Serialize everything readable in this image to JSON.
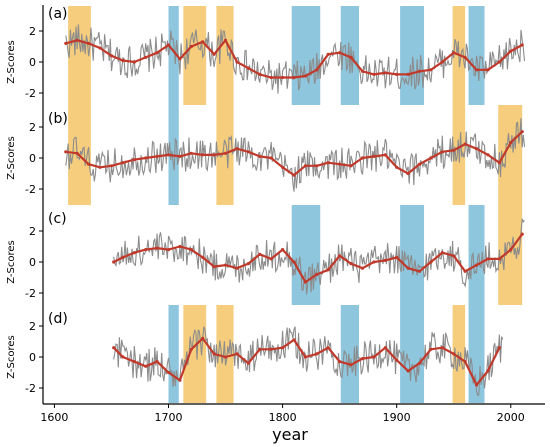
{
  "chart_data": {
    "type": "line",
    "title": "",
    "xlabel": "year",
    "ylabel": "Z-Scores",
    "xlim": [
      1590,
      2030
    ],
    "x_ticks": [
      1600,
      1700,
      1800,
      1900,
      2000
    ],
    "y_ticks": [
      -2,
      0,
      2
    ],
    "colors": {
      "raw": "#8c8c8c",
      "smoothed": "#c0392b",
      "blue_band": "#8ec6de",
      "orange_band": "#f5cd7d"
    },
    "bands": [
      {
        "color": "orange",
        "start": 1612,
        "end": 1632
      },
      {
        "color": "blue",
        "start": 1700,
        "end": 1709
      },
      {
        "color": "orange",
        "start": 1713,
        "end": 1733
      },
      {
        "color": "orange",
        "start": 1742,
        "end": 1757
      },
      {
        "color": "blue",
        "start": 1808,
        "end": 1833
      },
      {
        "color": "blue",
        "start": 1851,
        "end": 1867
      },
      {
        "color": "blue",
        "start": 1903,
        "end": 1924
      },
      {
        "color": "orange",
        "start": 1949,
        "end": 1960
      },
      {
        "color": "blue",
        "start": 1963,
        "end": 1977
      },
      {
        "color": "orange",
        "start": 1989,
        "end": 2010
      }
    ],
    "panels": [
      {
        "label": "(a)",
        "start": 1610,
        "end": 2012,
        "ylim": [
          -2.8,
          2.8
        ],
        "bands_visible": [
          1,
          1,
          1,
          1,
          1,
          1,
          1,
          1,
          1,
          0
        ],
        "smooth_x": [
          1610,
          1620,
          1630,
          1640,
          1650,
          1660,
          1670,
          1680,
          1690,
          1700,
          1710,
          1720,
          1730,
          1740,
          1750,
          1760,
          1770,
          1780,
          1790,
          1800,
          1810,
          1820,
          1830,
          1840,
          1850,
          1860,
          1870,
          1880,
          1890,
          1900,
          1910,
          1920,
          1930,
          1940,
          1950,
          1960,
          1970,
          1980,
          1990,
          2000,
          2010
        ],
        "smooth_y": [
          1.2,
          1.4,
          1.2,
          0.9,
          0.4,
          0.1,
          0.0,
          0.3,
          0.6,
          1.1,
          0.2,
          1.0,
          1.3,
          0.5,
          1.4,
          0.0,
          -0.4,
          -0.8,
          -1.0,
          -1.0,
          -1.0,
          -0.9,
          -0.5,
          0.5,
          0.6,
          0.3,
          -0.6,
          -0.8,
          -0.7,
          -0.8,
          -0.8,
          -0.6,
          -0.5,
          0.0,
          0.6,
          0.3,
          -0.5,
          -0.5,
          0.0,
          0.7,
          1.1
        ]
      },
      {
        "label": "(b)",
        "start": 1610,
        "end": 2012,
        "ylim": [
          -2.8,
          2.8
        ],
        "bands_visible": [
          1,
          1,
          0,
          1,
          0,
          0,
          0,
          1,
          0,
          1
        ],
        "smooth_x": [
          1610,
          1620,
          1630,
          1640,
          1650,
          1660,
          1670,
          1680,
          1690,
          1700,
          1710,
          1720,
          1730,
          1740,
          1750,
          1760,
          1770,
          1780,
          1790,
          1800,
          1810,
          1820,
          1830,
          1840,
          1850,
          1860,
          1870,
          1880,
          1890,
          1900,
          1910,
          1920,
          1930,
          1940,
          1950,
          1960,
          1970,
          1980,
          1990,
          2000,
          2010
        ],
        "smooth_y": [
          0.4,
          0.3,
          -0.4,
          -0.6,
          -0.5,
          -0.3,
          -0.1,
          0.0,
          0.1,
          0.2,
          0.1,
          0.3,
          0.2,
          0.2,
          0.3,
          0.6,
          0.4,
          0.1,
          0.0,
          -0.6,
          -1.1,
          -0.5,
          -0.5,
          -0.3,
          -0.4,
          -0.5,
          0.0,
          0.1,
          0.2,
          -0.6,
          -1.0,
          -0.4,
          0.0,
          0.4,
          0.5,
          0.9,
          0.6,
          0.2,
          -0.3,
          1.0,
          1.7
        ]
      },
      {
        "label": "(c)",
        "start": 1652,
        "end": 2012,
        "ylim": [
          -2.8,
          2.8
        ],
        "bands_visible": [
          0,
          0,
          0,
          0,
          1,
          0,
          1,
          0,
          1,
          1
        ],
        "smooth_x": [
          1652,
          1660,
          1670,
          1680,
          1690,
          1700,
          1710,
          1720,
          1730,
          1740,
          1750,
          1760,
          1770,
          1780,
          1790,
          1800,
          1810,
          1820,
          1830,
          1840,
          1850,
          1860,
          1870,
          1880,
          1890,
          1900,
          1910,
          1920,
          1930,
          1940,
          1950,
          1960,
          1970,
          1980,
          1990,
          2000,
          2010
        ],
        "smooth_y": [
          0.0,
          0.3,
          0.6,
          0.8,
          0.9,
          0.8,
          1.0,
          0.8,
          0.3,
          -0.3,
          -0.2,
          -0.4,
          -0.1,
          0.5,
          0.2,
          0.8,
          0.0,
          -1.3,
          -0.8,
          -0.5,
          0.4,
          -0.1,
          -0.4,
          0.0,
          0.1,
          0.3,
          -0.4,
          -0.6,
          0.0,
          0.6,
          0.4,
          -0.6,
          -0.2,
          0.2,
          0.2,
          0.8,
          1.8
        ]
      },
      {
        "label": "(d)",
        "start": 1652,
        "end": 1993,
        "ylim": [
          -2.8,
          2.8
        ],
        "bands_visible": [
          0,
          1,
          1,
          1,
          0,
          1,
          1,
          1,
          1,
          0
        ],
        "smooth_x": [
          1652,
          1660,
          1670,
          1680,
          1690,
          1700,
          1710,
          1720,
          1730,
          1740,
          1750,
          1760,
          1770,
          1780,
          1790,
          1800,
          1810,
          1820,
          1830,
          1840,
          1850,
          1860,
          1870,
          1880,
          1890,
          1900,
          1910,
          1920,
          1930,
          1940,
          1950,
          1960,
          1970,
          1980,
          1990
        ],
        "smooth_y": [
          0.6,
          0.0,
          -0.3,
          -0.6,
          -0.3,
          -1.0,
          -1.5,
          0.5,
          1.2,
          0.2,
          0.0,
          0.2,
          -0.4,
          0.5,
          0.5,
          0.6,
          1.1,
          0.0,
          0.2,
          0.6,
          -0.3,
          -0.5,
          -0.1,
          0.0,
          0.6,
          -0.2,
          -0.9,
          -0.4,
          0.5,
          0.6,
          0.2,
          -0.3,
          -1.8,
          -0.9,
          0.6
        ]
      }
    ]
  }
}
